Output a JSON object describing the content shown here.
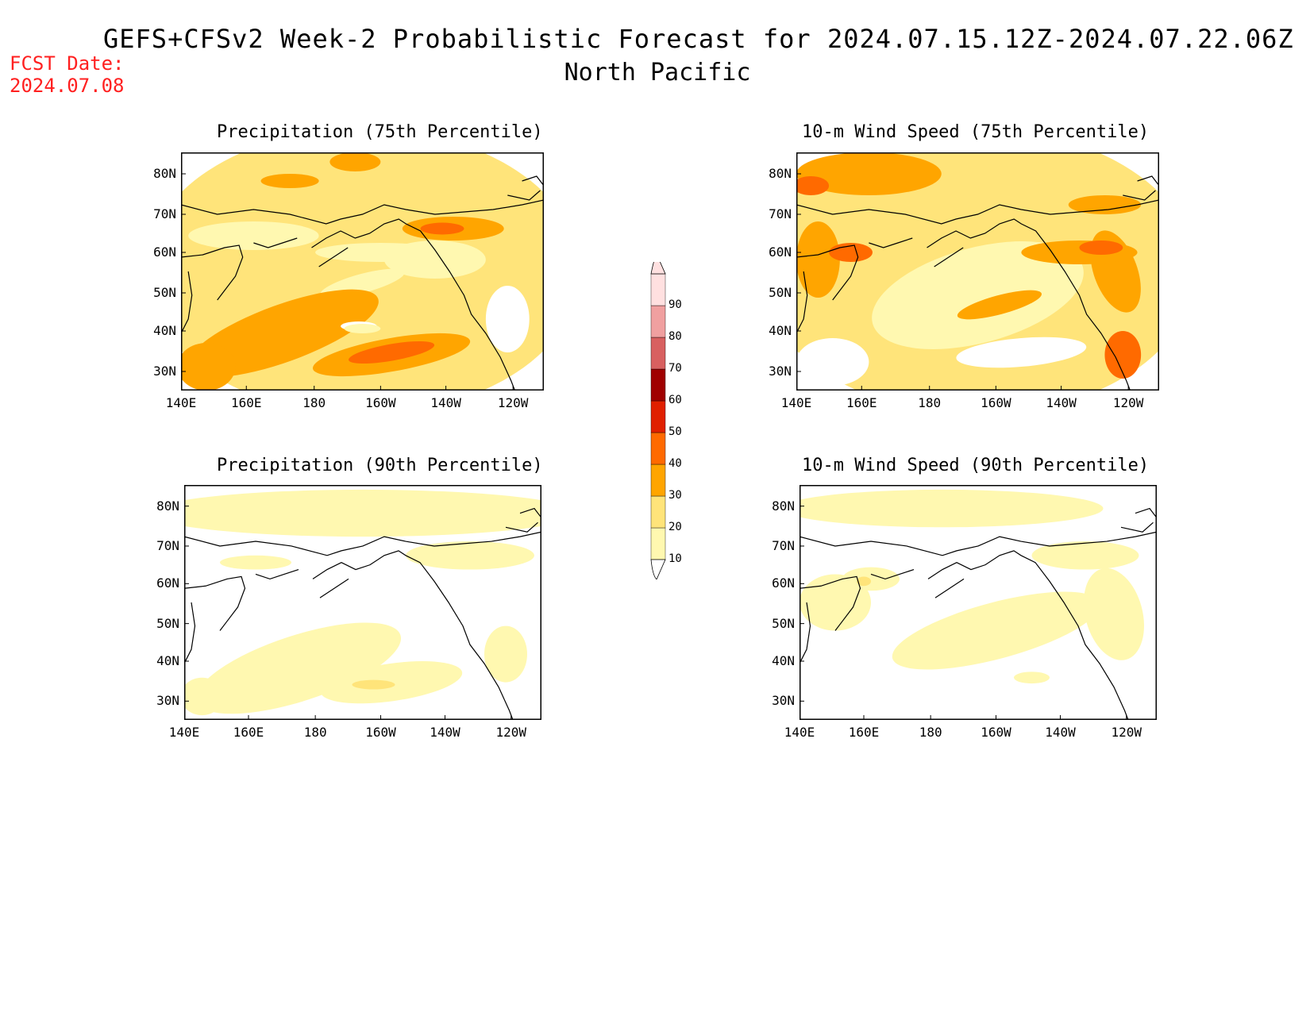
{
  "header": {
    "title": "GEFS+CFSv2 Week-2 Probabilistic Forecast for 2024.07.15.12Z-2024.07.22.06Z",
    "subtitle": "North Pacific",
    "fcst_label": "FCST Date:",
    "fcst_date": "2024.07.08"
  },
  "panels": [
    {
      "title": "Precipitation (75th Percentile)"
    },
    {
      "title": "10-m Wind Speed (75th Percentile)"
    },
    {
      "title": "Precipitation (90th Percentile)"
    },
    {
      "title": "10-m Wind Speed (90th Percentile)"
    }
  ],
  "axes": {
    "lat_labels": [
      "80N",
      "70N",
      "60N",
      "50N",
      "40N",
      "30N"
    ],
    "lon_labels": [
      "140E",
      "160E",
      "180",
      "160W",
      "140W",
      "120W"
    ]
  },
  "colorbar": {
    "levels": [
      "10",
      "20",
      "30",
      "40",
      "50",
      "60",
      "70",
      "80",
      "90"
    ],
    "colors": [
      "#fff8b0",
      "#ffe47a",
      "#ffa500",
      "#ff6a00",
      "#e02000",
      "#a00000",
      "#d86060",
      "#f0a0a0",
      "#ffe0e0"
    ]
  }
}
